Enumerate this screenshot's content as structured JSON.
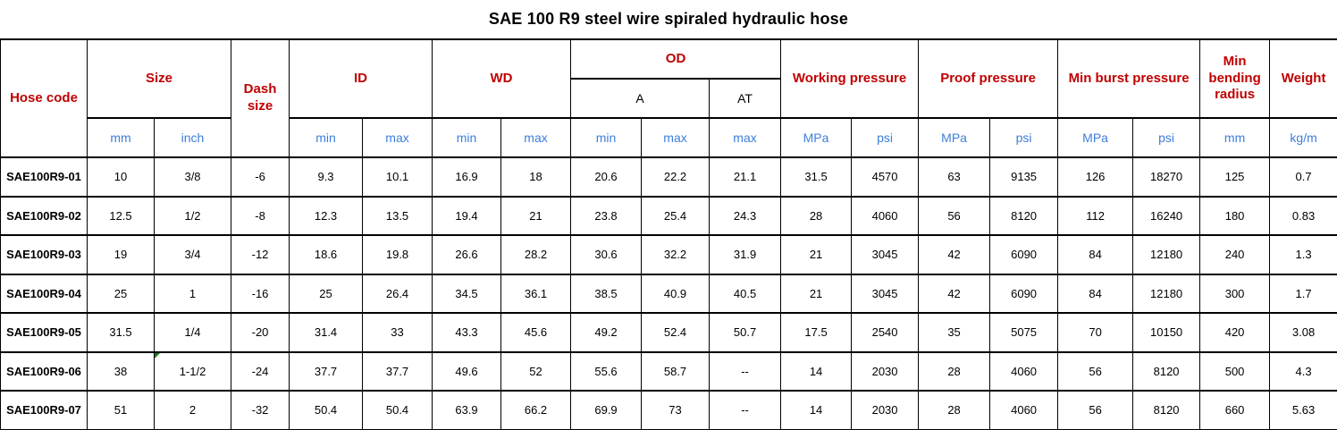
{
  "title": "SAE 100 R9 steel wire spiraled hydraulic hose",
  "colors": {
    "header_text": "#C00000",
    "unit_text": "#3D7EDB",
    "data_text": "#000000",
    "border": "#000000",
    "corner_marker": "#1E7E1E",
    "background": "#FFFFFF"
  },
  "table": {
    "header": {
      "hose_code": "Hose code",
      "size": "Size",
      "dash_size": "Dash size",
      "id": "ID",
      "wd": "WD",
      "od": "OD",
      "od_a": "A",
      "od_at": "AT",
      "working_pressure": "Working pressure",
      "proof_pressure": "Proof pressure",
      "min_burst_pressure": "Min burst pressure",
      "min_bending_radius": "Min bending radius",
      "weight": "Weight"
    },
    "units": [
      "mm",
      "inch",
      "min",
      "max",
      "min",
      "max",
      "min",
      "max",
      "max",
      "MPa",
      "psi",
      "MPa",
      "psi",
      "MPa",
      "psi",
      "mm",
      "kg/m"
    ],
    "rows": [
      {
        "code": "SAE100R9-01",
        "values": [
          "10",
          "3/8",
          "-6",
          "9.3",
          "10.1",
          "16.9",
          "18",
          "20.6",
          "22.2",
          "21.1",
          "31.5",
          "4570",
          "63",
          "9135",
          "126",
          "18270",
          "125",
          "0.7"
        ],
        "marker_col": null
      },
      {
        "code": "SAE100R9-02",
        "values": [
          "12.5",
          "1/2",
          "-8",
          "12.3",
          "13.5",
          "19.4",
          "21",
          "23.8",
          "25.4",
          "24.3",
          "28",
          "4060",
          "56",
          "8120",
          "112",
          "16240",
          "180",
          "0.83"
        ],
        "marker_col": null
      },
      {
        "code": "SAE100R9-03",
        "values": [
          "19",
          "3/4",
          "-12",
          "18.6",
          "19.8",
          "26.6",
          "28.2",
          "30.6",
          "32.2",
          "31.9",
          "21",
          "3045",
          "42",
          "6090",
          "84",
          "12180",
          "240",
          "1.3"
        ],
        "marker_col": null
      },
      {
        "code": "SAE100R9-04",
        "values": [
          "25",
          "1",
          "-16",
          "25",
          "26.4",
          "34.5",
          "36.1",
          "38.5",
          "40.9",
          "40.5",
          "21",
          "3045",
          "42",
          "6090",
          "84",
          "12180",
          "300",
          "1.7"
        ],
        "marker_col": null
      },
      {
        "code": "SAE100R9-05",
        "values": [
          "31.5",
          "1/4",
          "-20",
          "31.4",
          "33",
          "43.3",
          "45.6",
          "49.2",
          "52.4",
          "50.7",
          "17.5",
          "2540",
          "35",
          "5075",
          "70",
          "10150",
          "420",
          "3.08"
        ],
        "marker_col": null
      },
      {
        "code": "SAE100R9-06",
        "values": [
          "38",
          "1-1/2",
          "-24",
          "37.7",
          "37.7",
          "49.6",
          "52",
          "55.6",
          "58.7",
          "--",
          "14",
          "2030",
          "28",
          "4060",
          "56",
          "8120",
          "500",
          "4.3"
        ],
        "marker_col": 1
      },
      {
        "code": "SAE100R9-07",
        "values": [
          "51",
          "2",
          "-32",
          "50.4",
          "50.4",
          "63.9",
          "66.2",
          "69.9",
          "73",
          "--",
          "14",
          "2030",
          "28",
          "4060",
          "56",
          "8120",
          "660",
          "5.63"
        ],
        "marker_col": null
      }
    ]
  }
}
